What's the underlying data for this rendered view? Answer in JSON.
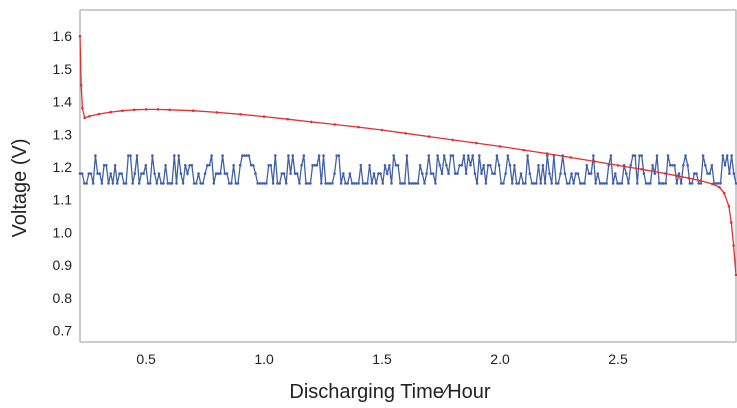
{
  "chart_data": {
    "type": "line",
    "title": "",
    "xlabel": "Discharging Time∕Hour",
    "ylabel": "Voltage (V)",
    "xlim": [
      0.22,
      3.0
    ],
    "ylim": [
      0.665,
      1.68
    ],
    "x_ticks": [
      {
        "value": 0.5,
        "label": "0.5"
      },
      {
        "value": 1.0,
        "label": "1.0"
      },
      {
        "value": 1.5,
        "label": "1.5"
      },
      {
        "value": 2.0,
        "label": "2.0"
      },
      {
        "value": 2.5,
        "label": "2.5"
      }
    ],
    "y_ticks": [
      {
        "value": 0.7,
        "label": "0.7"
      },
      {
        "value": 0.8,
        "label": "0.8"
      },
      {
        "value": 0.9,
        "label": "0.9"
      },
      {
        "value": 1.0,
        "label": "1.0"
      },
      {
        "value": 1.1,
        "label": "1.1"
      },
      {
        "value": 1.2,
        "label": "1.2"
      },
      {
        "value": 1.3,
        "label": "1.3"
      },
      {
        "value": 1.4,
        "label": "1.4"
      },
      {
        "value": 1.5,
        "label": "1.5"
      },
      {
        "value": 1.6,
        "label": "1.6"
      }
    ],
    "grid": false,
    "legend": "none",
    "series": [
      {
        "color": "#e03030",
        "style": "line-with-small-markers",
        "x": [
          0.22,
          0.225,
          0.23,
          0.24,
          0.26,
          0.3,
          0.35,
          0.4,
          0.45,
          0.5,
          0.55,
          0.6,
          0.7,
          0.8,
          0.9,
          1.0,
          1.1,
          1.2,
          1.3,
          1.4,
          1.5,
          1.6,
          1.7,
          1.8,
          1.9,
          2.0,
          2.1,
          2.2,
          2.3,
          2.4,
          2.5,
          2.6,
          2.7,
          2.75,
          2.8,
          2.85,
          2.9,
          2.93,
          2.95,
          2.97,
          2.98,
          2.99,
          3.0
        ],
        "y": [
          1.6,
          1.45,
          1.38,
          1.35,
          1.355,
          1.362,
          1.368,
          1.372,
          1.375,
          1.376,
          1.376,
          1.375,
          1.372,
          1.367,
          1.361,
          1.354,
          1.346,
          1.338,
          1.33,
          1.322,
          1.313,
          1.303,
          1.293,
          1.283,
          1.273,
          1.263,
          1.252,
          1.241,
          1.229,
          1.217,
          1.205,
          1.193,
          1.18,
          1.173,
          1.166,
          1.158,
          1.148,
          1.138,
          1.12,
          1.08,
          1.03,
          0.96,
          0.87
        ]
      },
      {
        "color": "#4060a8",
        "style": "line-with-small-markers",
        "x": [
          0.22,
          3.0
        ],
        "y_min": 1.15,
        "y_max": 1.235,
        "samples": 300,
        "pattern": "oscillating"
      }
    ]
  }
}
